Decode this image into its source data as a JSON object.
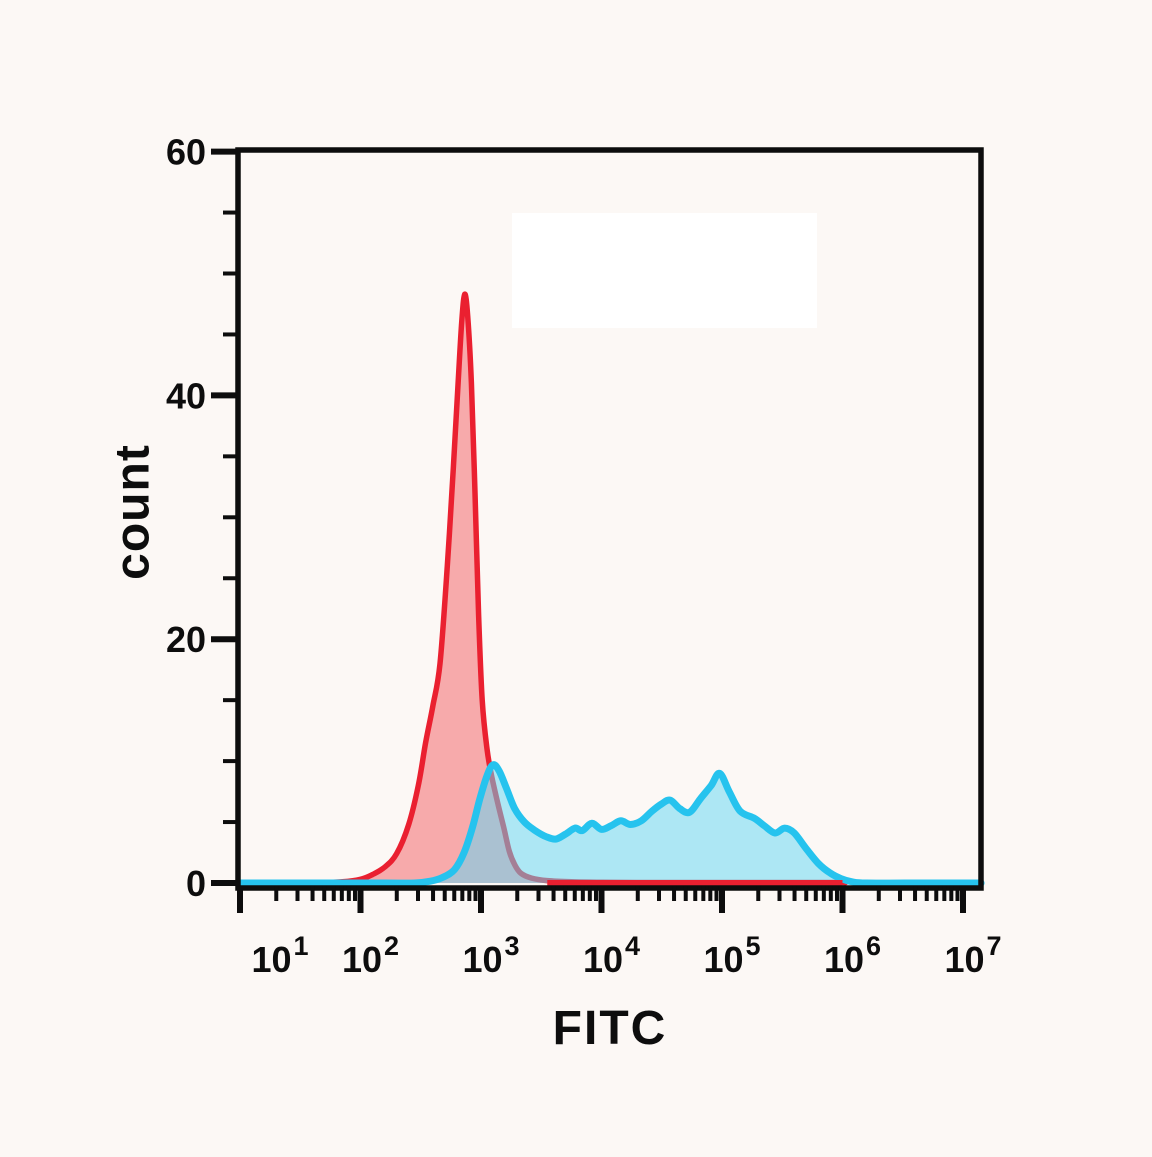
{
  "figure": {
    "background_color": "#FCF8F5",
    "plot_highlight_color": "#FFFFFF",
    "frame_color": "#0d0d0d"
  },
  "chart_data": {
    "type": "area",
    "subtype": "flow-cytometry-overlay-histogram",
    "title": "",
    "xlabel": "FITC",
    "ylabel": "count",
    "x_scale": "log10",
    "xlim_log": [
      0.98,
      7.15
    ],
    "ylim": [
      0,
      60
    ],
    "grid": "off",
    "legend": "none",
    "x_axis": {
      "tick_exponents": [
        1,
        2,
        3,
        4,
        5,
        6,
        7
      ],
      "tick_label_base": "10",
      "minor_tick_multiples": [
        2,
        3,
        4,
        5,
        6,
        7,
        8,
        9
      ]
    },
    "y_axis": {
      "major_ticks": [
        0,
        20,
        40,
        60
      ],
      "minor_ticks": [
        5,
        10,
        15,
        25,
        30,
        35,
        45,
        50,
        55
      ]
    },
    "series": [
      {
        "name": "red-control-histogram",
        "stroke": "#EA2030",
        "fill": "rgba(242,98,104,0.52)",
        "stroke_width": 5.5,
        "peak_log_x": 2.86,
        "peak_count": 48.2,
        "points_logx_count": [
          [
            1.6,
            0
          ],
          [
            1.85,
            0.1
          ],
          [
            2.0,
            0.3
          ],
          [
            2.1,
            0.7
          ],
          [
            2.2,
            1.3
          ],
          [
            2.3,
            2.4
          ],
          [
            2.4,
            4.8
          ],
          [
            2.48,
            8
          ],
          [
            2.54,
            11.5
          ],
          [
            2.6,
            14.5
          ],
          [
            2.66,
            18
          ],
          [
            2.72,
            26
          ],
          [
            2.77,
            34
          ],
          [
            2.81,
            41
          ],
          [
            2.84,
            46
          ],
          [
            2.865,
            48.3
          ],
          [
            2.89,
            46.5
          ],
          [
            2.92,
            41
          ],
          [
            2.95,
            32
          ],
          [
            2.98,
            22
          ],
          [
            3.01,
            15
          ],
          [
            3.05,
            11
          ],
          [
            3.09,
            8.7
          ],
          [
            3.14,
            6.5
          ],
          [
            3.19,
            4.5
          ],
          [
            3.235,
            2.6
          ],
          [
            3.28,
            1.5
          ],
          [
            3.33,
            0.8
          ],
          [
            3.42,
            0.4
          ],
          [
            3.55,
            0.2
          ],
          [
            3.75,
            0.1
          ],
          [
            4.0,
            0.06
          ],
          [
            4.4,
            0.04
          ],
          [
            5.0,
            0.04
          ],
          [
            5.6,
            0.04
          ],
          [
            5.98,
            0.04
          ],
          [
            6.02,
            0
          ]
        ],
        "baseline_overlay_logx": [
          3.55,
          6.0
        ]
      },
      {
        "name": "cyan-stained-histogram",
        "stroke": "#26C3EE",
        "fill": "rgba(99,214,244,0.52)",
        "stroke_width": 7,
        "peak_log_x": 3.1,
        "peak_count": 9.7,
        "points_logx_count": [
          [
            0.98,
            0
          ],
          [
            1.6,
            0
          ],
          [
            2.2,
            0
          ],
          [
            2.45,
            0
          ],
          [
            2.58,
            0.15
          ],
          [
            2.68,
            0.45
          ],
          [
            2.78,
            1.1
          ],
          [
            2.86,
            2.5
          ],
          [
            2.93,
            4.6
          ],
          [
            2.99,
            6.9
          ],
          [
            3.05,
            8.8
          ],
          [
            3.1,
            9.7
          ],
          [
            3.15,
            9.2
          ],
          [
            3.21,
            7.8
          ],
          [
            3.28,
            6.1
          ],
          [
            3.36,
            5.0
          ],
          [
            3.45,
            4.3
          ],
          [
            3.54,
            3.8
          ],
          [
            3.62,
            3.6
          ],
          [
            3.7,
            4.0
          ],
          [
            3.78,
            4.5
          ],
          [
            3.84,
            4.3
          ],
          [
            3.92,
            4.9
          ],
          [
            4.0,
            4.4
          ],
          [
            4.08,
            4.7
          ],
          [
            4.16,
            5.1
          ],
          [
            4.24,
            4.8
          ],
          [
            4.33,
            5.1
          ],
          [
            4.42,
            5.9
          ],
          [
            4.5,
            6.5
          ],
          [
            4.57,
            6.8
          ],
          [
            4.65,
            6.1
          ],
          [
            4.73,
            5.8
          ],
          [
            4.82,
            6.9
          ],
          [
            4.91,
            8.0
          ],
          [
            4.98,
            9.0
          ],
          [
            5.06,
            7.5
          ],
          [
            5.15,
            5.9
          ],
          [
            5.27,
            5.3
          ],
          [
            5.35,
            4.7
          ],
          [
            5.44,
            4.1
          ],
          [
            5.52,
            4.5
          ],
          [
            5.6,
            4.1
          ],
          [
            5.7,
            2.8
          ],
          [
            5.8,
            1.6
          ],
          [
            5.9,
            0.8
          ],
          [
            5.99,
            0.35
          ],
          [
            6.08,
            0.1
          ],
          [
            6.2,
            0
          ],
          [
            6.7,
            0
          ],
          [
            7.15,
            0
          ]
        ]
      }
    ]
  }
}
